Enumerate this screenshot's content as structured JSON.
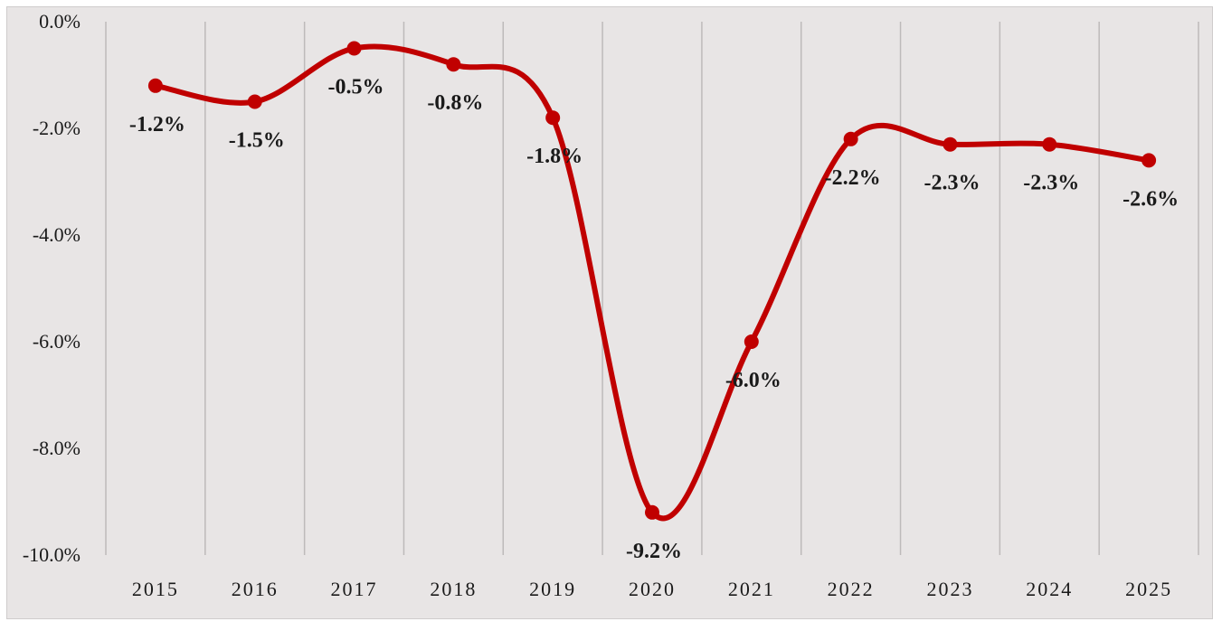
{
  "chart_data": {
    "type": "line",
    "title": "",
    "xlabel": "",
    "ylabel": "",
    "x": [
      "2015",
      "2016",
      "2017",
      "2018",
      "2019",
      "2020",
      "2021",
      "2022",
      "2023",
      "2024",
      "2025"
    ],
    "series": [
      {
        "values": [
          -1.2,
          -1.5,
          -0.5,
          -0.8,
          -1.8,
          -9.2,
          -6.0,
          -2.2,
          -2.3,
          -2.3,
          -2.6
        ],
        "data_labels": [
          "-1.2%",
          "-1.5%",
          "-0.5%",
          "-0.8%",
          "-1.8%",
          "-9.2%",
          "-6.0%",
          "-2.2%",
          "-2.3%",
          "-2.3%",
          "-2.6%"
        ],
        "color": "#c00000",
        "smooth": true,
        "markers": true
      }
    ],
    "ylim": [
      -10.0,
      0.0
    ],
    "yticks": [
      0.0,
      -2.0,
      -4.0,
      -6.0,
      -8.0,
      -10.0
    ],
    "ytick_labels": [
      "0.0%",
      "-2.0%",
      "-4.0%",
      "-6.0%",
      "-8.0%",
      "-10.0%"
    ],
    "grid": "vertical",
    "legend": "none",
    "colors": {
      "background": "#e8e5e5",
      "gridline": "#bdbaba",
      "line": "#c00000",
      "text": "#1a1a1a"
    }
  }
}
